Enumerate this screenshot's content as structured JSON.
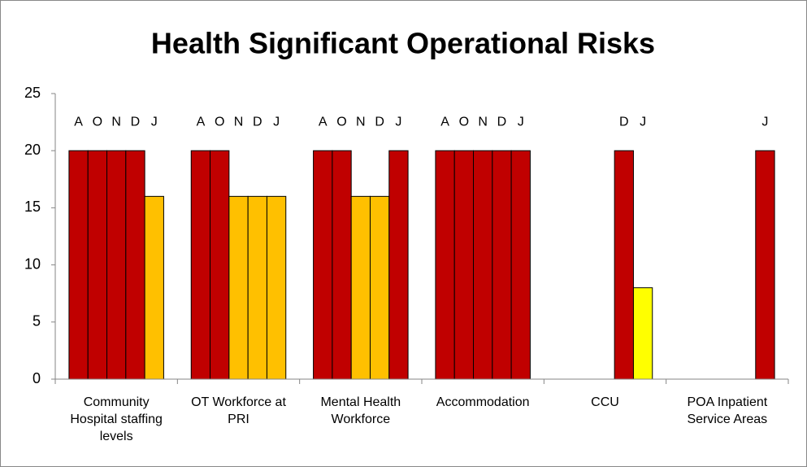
{
  "chart_data": {
    "type": "bar",
    "title": "Health Significant Operational Risks",
    "categories": [
      "Community Hospital staffing levels",
      "OT Workforce at PRI",
      "Mental Health Workforce",
      "Accommodation",
      "CCU",
      "POA Inpatient Service Areas"
    ],
    "series": [
      {
        "name": "A",
        "values": [
          20,
          20,
          20,
          20,
          null,
          null
        ],
        "colors": [
          "#c00000",
          "#c00000",
          "#c00000",
          "#c00000",
          null,
          null
        ]
      },
      {
        "name": "O",
        "values": [
          20,
          20,
          20,
          20,
          null,
          null
        ],
        "colors": [
          "#c00000",
          "#c00000",
          "#c00000",
          "#c00000",
          null,
          null
        ]
      },
      {
        "name": "N",
        "values": [
          20,
          16,
          16,
          20,
          null,
          null
        ],
        "colors": [
          "#c00000",
          "#ffc000",
          "#ffc000",
          "#c00000",
          null,
          null
        ]
      },
      {
        "name": "D",
        "values": [
          20,
          16,
          16,
          20,
          20,
          null
        ],
        "colors": [
          "#c00000",
          "#ffc000",
          "#ffc000",
          "#c00000",
          "#c00000",
          null
        ]
      },
      {
        "name": "J",
        "values": [
          16,
          16,
          20,
          20,
          8,
          20
        ],
        "colors": [
          "#ffc000",
          "#ffc000",
          "#c00000",
          "#c00000",
          "#ffff00",
          "#c00000"
        ]
      }
    ],
    "ylim": [
      0,
      25
    ],
    "yticks": [
      0,
      5,
      10,
      15,
      20,
      25
    ],
    "grid": false
  }
}
